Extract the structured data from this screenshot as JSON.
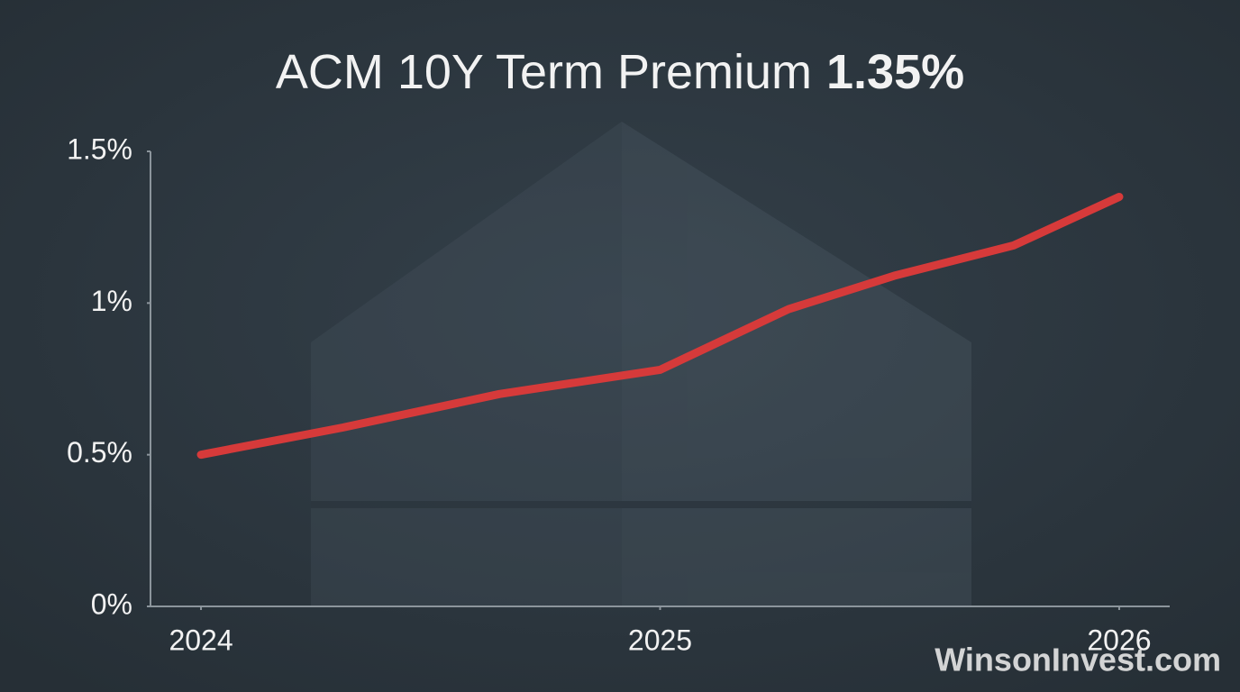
{
  "chart_data": {
    "type": "line",
    "title": "ACM 10Y Term Premium",
    "title_value": "1.35%",
    "x": [
      2024,
      2024.31,
      2024.65,
      2025.0,
      2025.28,
      2025.51,
      2025.77,
      2026
    ],
    "values": [
      0.5,
      0.59,
      0.7,
      0.78,
      0.98,
      1.09,
      1.19,
      1.35
    ],
    "color": "#d63a3a",
    "xlim": [
      2023.89,
      2026.11
    ],
    "xticks": [
      2024,
      2025,
      2026
    ],
    "ylim": [
      0,
      1.5
    ],
    "yticks": [
      {
        "value": 0,
        "label": "0%"
      },
      {
        "value": 0.5,
        "label": "0.5%"
      },
      {
        "value": 1,
        "label": "1%"
      },
      {
        "value": 1.5,
        "label": "1.5%"
      }
    ],
    "watermark": "WinsonInvest.com"
  }
}
